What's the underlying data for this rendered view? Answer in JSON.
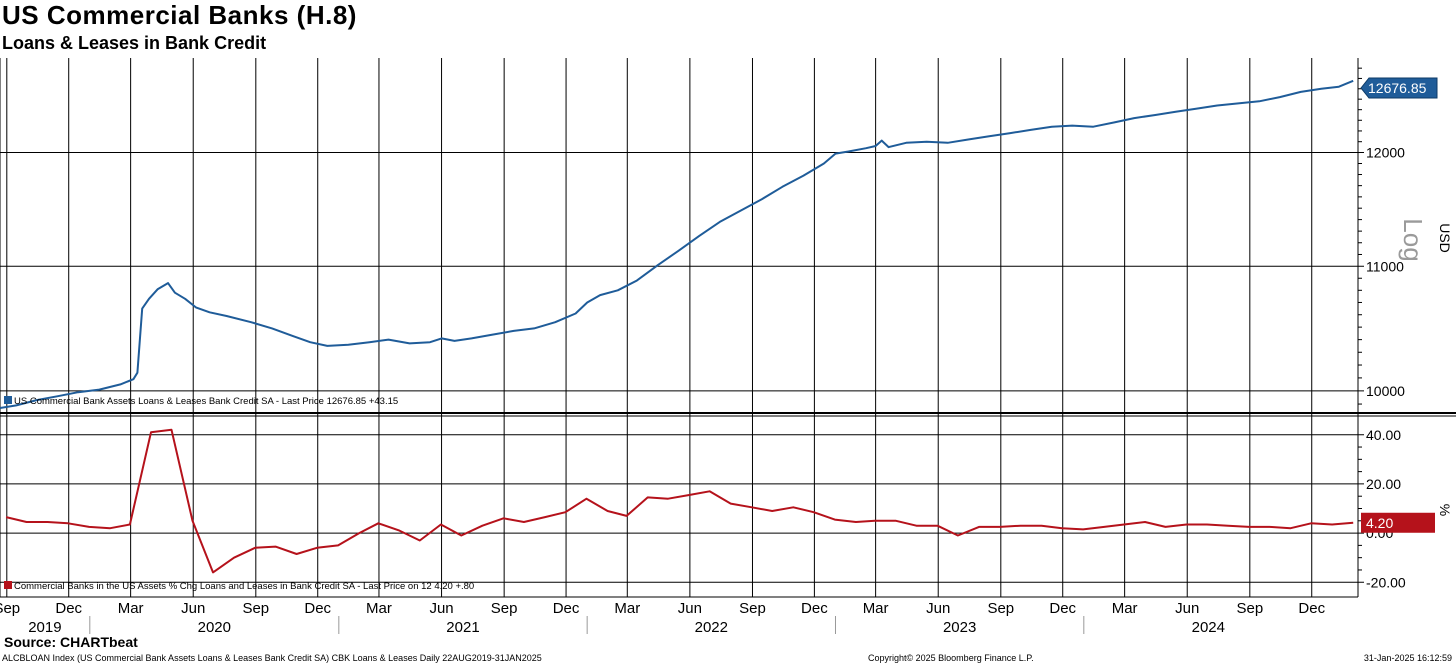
{
  "header": {
    "title": "US Commercial Banks (H.8)",
    "subtitle": "Loans & Leases in Bank Credit"
  },
  "footer": {
    "source": "Source: CHARTbeat",
    "index_info": "ALCBLOAN Index (US Commercial Bank Assets Loans & Leases Bank Credit SA) CBK Loans & Leases  Daily 22AUG2019-31JAN2025",
    "copyright": "Copyright© 2025 Bloomberg Finance L.P.",
    "timestamp": "31-Jan-2025 16:12:59"
  },
  "colors": {
    "top_series": "#1f5c99",
    "bottom_series": "#b5121b"
  },
  "chart_data": [
    {
      "type": "line",
      "name": "top-panel",
      "scale": "log",
      "log_label": "Log",
      "unit_label": "USD",
      "ylim": [
        9840,
        12900
      ],
      "yticks": [
        10000,
        11000,
        12000
      ],
      "ytick_labels": [
        "10000",
        "11000",
        "12000"
      ],
      "last_value_label": "12676.85",
      "legend": "US Commercial Bank Assets Loans & Leases Bank Credit SA - Last Price 12676.85  +43.15",
      "series": [
        {
          "name": "US Commercial Bank Assets Loans & Leases Bank Credit SA",
          "points": [
            [
              "2019-08-22",
              9870
            ],
            [
              "2019-09-15",
              9890
            ],
            [
              "2019-10-15",
              9930
            ],
            [
              "2019-11-15",
              9960
            ],
            [
              "2019-12-15",
              9990
            ],
            [
              "2020-01-15",
              10010
            ],
            [
              "2020-02-15",
              10050
            ],
            [
              "2020-03-05",
              10090
            ],
            [
              "2020-03-11",
              10140
            ],
            [
              "2020-03-18",
              10650
            ],
            [
              "2020-03-28",
              10730
            ],
            [
              "2020-04-10",
              10810
            ],
            [
              "2020-04-25",
              10860
            ],
            [
              "2020-05-05",
              10780
            ],
            [
              "2020-05-20",
              10730
            ],
            [
              "2020-06-05",
              10660
            ],
            [
              "2020-06-25",
              10620
            ],
            [
              "2020-07-20",
              10590
            ],
            [
              "2020-08-25",
              10540
            ],
            [
              "2020-09-25",
              10490
            ],
            [
              "2020-10-25",
              10430
            ],
            [
              "2020-11-20",
              10380
            ],
            [
              "2020-12-15",
              10350
            ],
            [
              "2021-01-15",
              10360
            ],
            [
              "2021-02-15",
              10380
            ],
            [
              "2021-03-15",
              10400
            ],
            [
              "2021-04-15",
              10370
            ],
            [
              "2021-05-15",
              10380
            ],
            [
              "2021-06-01",
              10410
            ],
            [
              "2021-06-20",
              10390
            ],
            [
              "2021-07-15",
              10410
            ],
            [
              "2021-08-15",
              10440
            ],
            [
              "2021-09-15",
              10470
            ],
            [
              "2021-10-15",
              10490
            ],
            [
              "2021-11-15",
              10540
            ],
            [
              "2021-12-15",
              10610
            ],
            [
              "2022-01-01",
              10700
            ],
            [
              "2022-01-20",
              10760
            ],
            [
              "2022-02-15",
              10800
            ],
            [
              "2022-03-15",
              10880
            ],
            [
              "2022-04-15",
              11010
            ],
            [
              "2022-05-15",
              11130
            ],
            [
              "2022-06-15",
              11260
            ],
            [
              "2022-07-15",
              11380
            ],
            [
              "2022-08-15",
              11480
            ],
            [
              "2022-09-15",
              11580
            ],
            [
              "2022-10-15",
              11690
            ],
            [
              "2022-11-15",
              11790
            ],
            [
              "2022-12-15",
              11900
            ],
            [
              "2023-01-01",
              11990
            ],
            [
              "2023-01-20",
              12010
            ],
            [
              "2023-02-15",
              12040
            ],
            [
              "2023-03-01",
              12060
            ],
            [
              "2023-03-10",
              12110
            ],
            [
              "2023-03-20",
              12050
            ],
            [
              "2023-04-15",
              12090
            ],
            [
              "2023-05-15",
              12100
            ],
            [
              "2023-06-15",
              12090
            ],
            [
              "2023-07-15",
              12120
            ],
            [
              "2023-08-15",
              12150
            ],
            [
              "2023-09-15",
              12180
            ],
            [
              "2023-10-15",
              12210
            ],
            [
              "2023-11-15",
              12240
            ],
            [
              "2023-12-15",
              12250
            ],
            [
              "2024-01-15",
              12240
            ],
            [
              "2024-02-15",
              12280
            ],
            [
              "2024-03-15",
              12320
            ],
            [
              "2024-04-15",
              12350
            ],
            [
              "2024-05-15",
              12380
            ],
            [
              "2024-06-15",
              12410
            ],
            [
              "2024-07-15",
              12440
            ],
            [
              "2024-08-15",
              12460
            ],
            [
              "2024-09-15",
              12480
            ],
            [
              "2024-10-15",
              12520
            ],
            [
              "2024-11-15",
              12570
            ],
            [
              "2024-12-15",
              12600
            ],
            [
              "2025-01-10",
              12620
            ],
            [
              "2025-01-31",
              12676.85
            ]
          ]
        }
      ]
    },
    {
      "type": "line",
      "name": "bottom-panel",
      "unit_label": "%",
      "ylim": [
        -26,
        46
      ],
      "yticks": [
        -20,
        0,
        20,
        40
      ],
      "ytick_labels": [
        "-20.00",
        "0.00",
        "20.00",
        "40.00"
      ],
      "last_value_label": "4.20",
      "legend": "Commercial Banks in the US Assets % Chg Loans and Leases in Bank Credit SA - Last Price on 12 4.20  +.80",
      "series": [
        {
          "name": "Commercial Banks in the US Assets % Chg Loans and Leases in Bank Credit SA",
          "points": [
            [
              "2019-08-31",
              6.5
            ],
            [
              "2019-09-30",
              4.5
            ],
            [
              "2019-10-31",
              4.5
            ],
            [
              "2019-11-30",
              4.0
            ],
            [
              "2019-12-31",
              2.5
            ],
            [
              "2020-01-31",
              2.0
            ],
            [
              "2020-02-29",
              3.5
            ],
            [
              "2020-03-31",
              41.0
            ],
            [
              "2020-04-30",
              42.0
            ],
            [
              "2020-05-31",
              5.0
            ],
            [
              "2020-06-30",
              -16.0
            ],
            [
              "2020-07-31",
              -10.0
            ],
            [
              "2020-08-31",
              -6.0
            ],
            [
              "2020-09-30",
              -5.5
            ],
            [
              "2020-10-31",
              -8.5
            ],
            [
              "2020-11-30",
              -6.0
            ],
            [
              "2020-12-31",
              -5.0
            ],
            [
              "2021-01-31",
              0.0
            ],
            [
              "2021-02-28",
              4.0
            ],
            [
              "2021-03-31",
              1.0
            ],
            [
              "2021-04-30",
              -3.0
            ],
            [
              "2021-05-31",
              3.5
            ],
            [
              "2021-06-30",
              -1.0
            ],
            [
              "2021-07-31",
              3.0
            ],
            [
              "2021-08-31",
              6.0
            ],
            [
              "2021-09-30",
              4.5
            ],
            [
              "2021-10-31",
              6.5
            ],
            [
              "2021-11-30",
              8.5
            ],
            [
              "2021-12-31",
              14.0
            ],
            [
              "2022-01-31",
              9.0
            ],
            [
              "2022-02-28",
              7.0
            ],
            [
              "2022-03-31",
              14.5
            ],
            [
              "2022-04-30",
              14.0
            ],
            [
              "2022-05-31",
              15.5
            ],
            [
              "2022-06-30",
              17.0
            ],
            [
              "2022-07-31",
              12.0
            ],
            [
              "2022-08-31",
              10.5
            ],
            [
              "2022-09-30",
              9.0
            ],
            [
              "2022-10-31",
              10.5
            ],
            [
              "2022-11-30",
              8.5
            ],
            [
              "2022-12-31",
              5.5
            ],
            [
              "2023-01-31",
              4.5
            ],
            [
              "2023-02-28",
              5.0
            ],
            [
              "2023-03-31",
              5.0
            ],
            [
              "2023-04-30",
              3.0
            ],
            [
              "2023-05-31",
              3.0
            ],
            [
              "2023-06-30",
              -1.0
            ],
            [
              "2023-07-31",
              2.5
            ],
            [
              "2023-08-31",
              2.5
            ],
            [
              "2023-09-30",
              3.0
            ],
            [
              "2023-10-31",
              3.0
            ],
            [
              "2023-11-30",
              2.0
            ],
            [
              "2023-12-31",
              1.5
            ],
            [
              "2024-01-31",
              2.5
            ],
            [
              "2024-02-29",
              3.5
            ],
            [
              "2024-03-31",
              4.5
            ],
            [
              "2024-04-30",
              2.5
            ],
            [
              "2024-05-31",
              3.5
            ],
            [
              "2024-06-30",
              3.5
            ],
            [
              "2024-07-31",
              3.0
            ],
            [
              "2024-08-31",
              2.5
            ],
            [
              "2024-09-30",
              2.5
            ],
            [
              "2024-10-31",
              2.0
            ],
            [
              "2024-11-30",
              4.0
            ],
            [
              "2024-12-31",
              3.5
            ],
            [
              "2025-01-31",
              4.2
            ]
          ]
        }
      ]
    }
  ],
  "x_axis": {
    "range": [
      "2019-08-22",
      "2025-01-31"
    ],
    "months": [
      {
        "label": "Sep",
        "date": "2019-09-01"
      },
      {
        "label": "Dec",
        "date": "2019-12-01"
      },
      {
        "label": "Mar",
        "date": "2020-03-01"
      },
      {
        "label": "Jun",
        "date": "2020-06-01"
      },
      {
        "label": "Sep",
        "date": "2020-09-01"
      },
      {
        "label": "Dec",
        "date": "2020-12-01"
      },
      {
        "label": "Mar",
        "date": "2021-03-01"
      },
      {
        "label": "Jun",
        "date": "2021-06-01"
      },
      {
        "label": "Sep",
        "date": "2021-09-01"
      },
      {
        "label": "Dec",
        "date": "2021-12-01"
      },
      {
        "label": "Mar",
        "date": "2022-03-01"
      },
      {
        "label": "Jun",
        "date": "2022-06-01"
      },
      {
        "label": "Sep",
        "date": "2022-09-01"
      },
      {
        "label": "Dec",
        "date": "2022-12-01"
      },
      {
        "label": "Mar",
        "date": "2023-03-01"
      },
      {
        "label": "Jun",
        "date": "2023-06-01"
      },
      {
        "label": "Sep",
        "date": "2023-09-01"
      },
      {
        "label": "Dec",
        "date": "2023-12-01"
      },
      {
        "label": "Mar",
        "date": "2024-03-01"
      },
      {
        "label": "Jun",
        "date": "2024-06-01"
      },
      {
        "label": "Sep",
        "date": "2024-09-01"
      },
      {
        "label": "Dec",
        "date": "2024-12-01"
      }
    ],
    "years": [
      {
        "label": "2019",
        "start": "2019-08-22",
        "end": "2020-01-01"
      },
      {
        "label": "2020",
        "start": "2020-01-01",
        "end": "2021-01-01"
      },
      {
        "label": "2021",
        "start": "2021-01-01",
        "end": "2022-01-01"
      },
      {
        "label": "2022",
        "start": "2022-01-01",
        "end": "2023-01-01"
      },
      {
        "label": "2023",
        "start": "2023-01-01",
        "end": "2024-01-01"
      },
      {
        "label": "2024",
        "start": "2024-01-01",
        "end": "2025-01-01"
      }
    ]
  }
}
